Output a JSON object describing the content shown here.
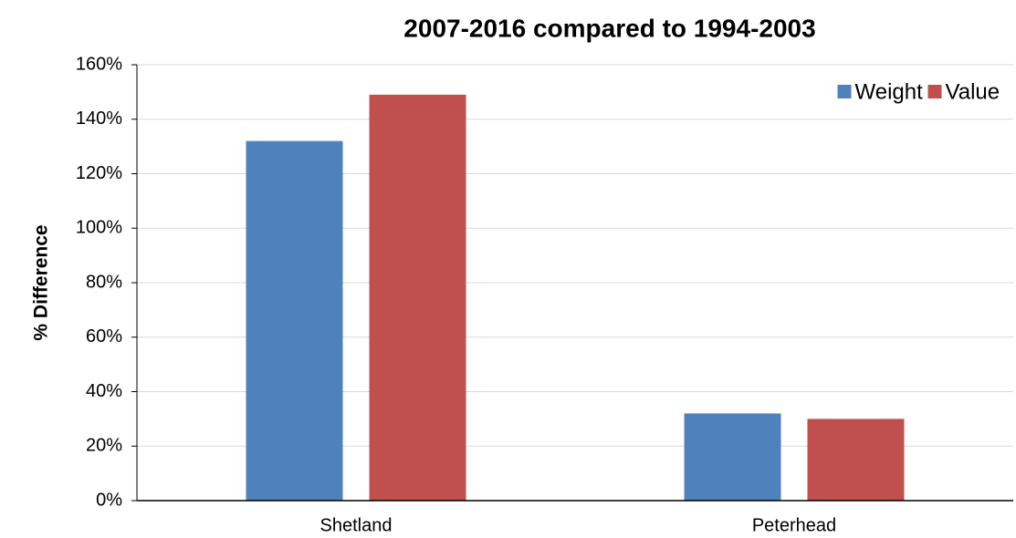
{
  "chart_data": {
    "type": "bar",
    "title": "2007-2016 compared to 1994-2003",
    "y_label": "% Difference",
    "categories": [
      "Shetland",
      "Peterhead"
    ],
    "series": [
      {
        "name": "Weight",
        "color": "#4f81bd",
        "values": [
          132,
          32
        ]
      },
      {
        "name": "Value",
        "color": "#c0504d",
        "values": [
          149,
          30
        ]
      }
    ],
    "ylim": [
      0,
      160
    ],
    "yticks": [
      {
        "value": 0,
        "label": "0%"
      },
      {
        "value": 20,
        "label": "20%"
      },
      {
        "value": 40,
        "label": "40%"
      },
      {
        "value": 60,
        "label": "60%"
      },
      {
        "value": 80,
        "label": "80%"
      },
      {
        "value": 100,
        "label": "100%"
      },
      {
        "value": 120,
        "label": "120%"
      },
      {
        "value": 140,
        "label": "140%"
      },
      {
        "value": 160,
        "label": "160%"
      }
    ],
    "grid": true,
    "legend": "top-right"
  }
}
